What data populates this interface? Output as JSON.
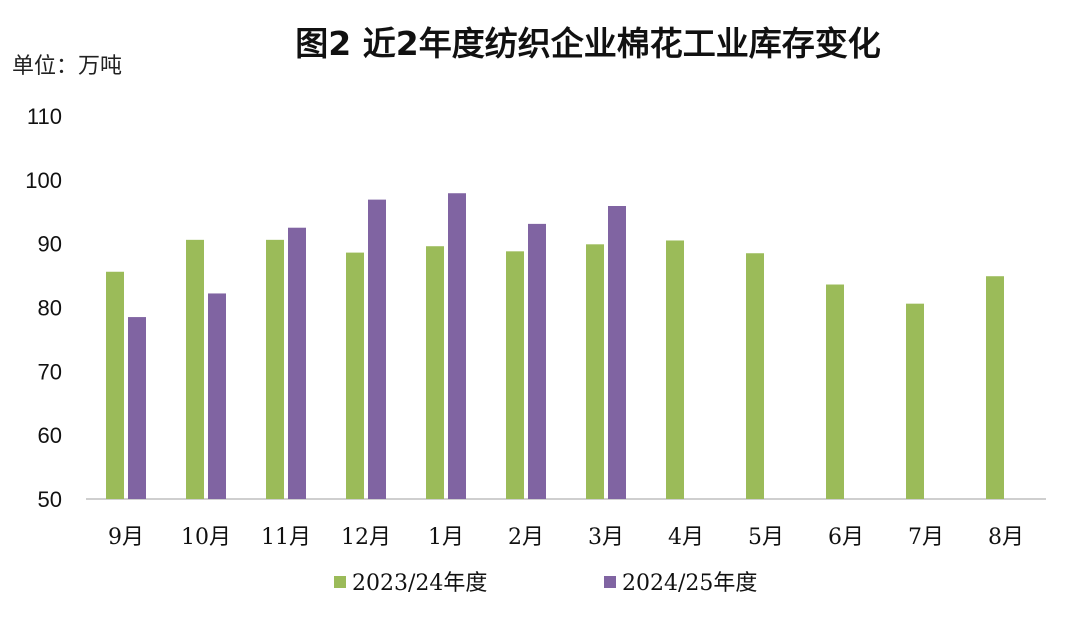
{
  "chart_data": {
    "type": "bar",
    "title": "图2  近2年度纺织企业棉花工业库存变化",
    "unit_label": "单位：万吨",
    "categories": [
      "9月",
      "10月",
      "11月",
      "12月",
      "1月",
      "2月",
      "3月",
      "4月",
      "5月",
      "6月",
      "7月",
      "8月"
    ],
    "series": [
      {
        "name": "2023/24年度",
        "color": "#9bbb59",
        "values": [
          85.6,
          90.6,
          90.6,
          88.6,
          89.6,
          88.8,
          89.9,
          90.5,
          88.5,
          83.6,
          80.6,
          84.9
        ]
      },
      {
        "name": "2024/25年度",
        "color": "#8064a2",
        "values": [
          78.5,
          82.2,
          92.5,
          96.9,
          97.9,
          93.1,
          95.9,
          null,
          null,
          null,
          null,
          null
        ]
      }
    ],
    "ylim": [
      50,
      110
    ],
    "yticks": [
      50,
      60,
      70,
      80,
      90,
      100,
      110
    ],
    "xlabel": "",
    "ylabel": "",
    "grid": false,
    "legend_position": "bottom"
  }
}
